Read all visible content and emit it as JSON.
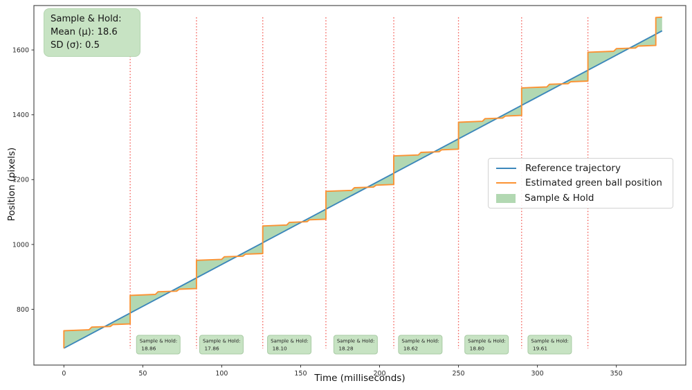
{
  "summary_box": {
    "line1": "Sample & Hold:",
    "line2": "Mean (μ): 18.6",
    "line3": "SD (σ): 0.5"
  },
  "legend": {
    "items": [
      {
        "label": "Reference trajectory",
        "swatch": "line",
        "color": "#3c87bb"
      },
      {
        "label": "Estimated green ball position",
        "swatch": "line",
        "color": "#fb9233"
      },
      {
        "label": "Sample & Hold",
        "swatch": "patch",
        "color": "#b2d8b2"
      }
    ]
  },
  "chart_data": {
    "type": "line",
    "title": "",
    "xlabel": "Time (milliseconds)",
    "ylabel": "Position (pixels)",
    "xlim": [
      -19,
      394
    ],
    "ylim": [
      628,
      1737
    ],
    "x_ticks": [
      0,
      50,
      100,
      150,
      200,
      250,
      300,
      350
    ],
    "y_ticks": [
      800,
      1000,
      1200,
      1400,
      1600
    ],
    "grid": false,
    "legend_position": "center-right",
    "series": [
      {
        "name": "Reference trajectory",
        "type": "line",
        "color": "#3c87bb",
        "x": [
          0,
          379
        ],
        "y": [
          680,
          1659
        ]
      },
      {
        "name": "Estimated green ball position",
        "type": "sample-hold-step",
        "color": "#fb9233",
        "start": {
          "t": 0,
          "pos": 680
        },
        "sample_times": [
          0,
          42,
          84,
          126,
          166,
          209,
          250,
          290,
          332,
          375
        ],
        "hold_values": [
          734,
          843,
          951,
          1057,
          1164,
          1273,
          1377,
          1483,
          1593,
          1700
        ],
        "end_time": 379
      },
      {
        "name": "Sample & Hold",
        "type": "fill-between",
        "color": "#b2d8b2",
        "between": [
          "Reference trajectory",
          "Estimated green ball position"
        ]
      }
    ],
    "vlines": {
      "times": [
        42,
        84,
        126,
        166,
        209,
        250,
        290,
        332
      ],
      "color": "#f2453d",
      "style": "dotted"
    },
    "annotations": [
      {
        "t": 46,
        "label": "Sample & Hold:",
        "value": "18.86"
      },
      {
        "t": 86,
        "label": "Sample & Hold:",
        "value": "17.86"
      },
      {
        "t": 129,
        "label": "Sample & Hold:",
        "value": "18.10"
      },
      {
        "t": 171,
        "label": "Sample & Hold:",
        "value": "18.28"
      },
      {
        "t": 212,
        "label": "Sample & Hold:",
        "value": "18.62"
      },
      {
        "t": 254,
        "label": "Sample & Hold:",
        "value": "18.80"
      },
      {
        "t": 294,
        "label": "Sample & Hold:",
        "value": "19.61"
      }
    ],
    "annotation_box_color": "#c7e3c3"
  }
}
